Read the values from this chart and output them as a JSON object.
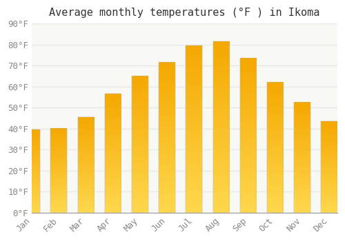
{
  "title": "Average monthly temperatures (°F ) in Ikoma",
  "months": [
    "Jan",
    "Feb",
    "Mar",
    "Apr",
    "May",
    "Jun",
    "Jul",
    "Aug",
    "Sep",
    "Oct",
    "Nov",
    "Dec"
  ],
  "values": [
    39.5,
    40.0,
    45.5,
    56.5,
    65.0,
    71.5,
    79.5,
    81.5,
    73.5,
    62.0,
    52.5,
    43.5
  ],
  "bar_color_top": "#F5A800",
  "bar_color_bottom": "#FFD84D",
  "background_color": "#FFFFFF",
  "plot_bg_color": "#F8F8F5",
  "grid_color": "#E8E8E8",
  "ylim": [
    0,
    90
  ],
  "yticks": [
    0,
    10,
    20,
    30,
    40,
    50,
    60,
    70,
    80,
    90
  ],
  "ytick_labels": [
    "0°F",
    "10°F",
    "20°F",
    "30°F",
    "40°F",
    "50°F",
    "60°F",
    "70°F",
    "80°F",
    "90°F"
  ],
  "title_fontsize": 11,
  "tick_fontsize": 9,
  "tick_color": "#888888",
  "font_family": "monospace",
  "bar_width": 0.6
}
